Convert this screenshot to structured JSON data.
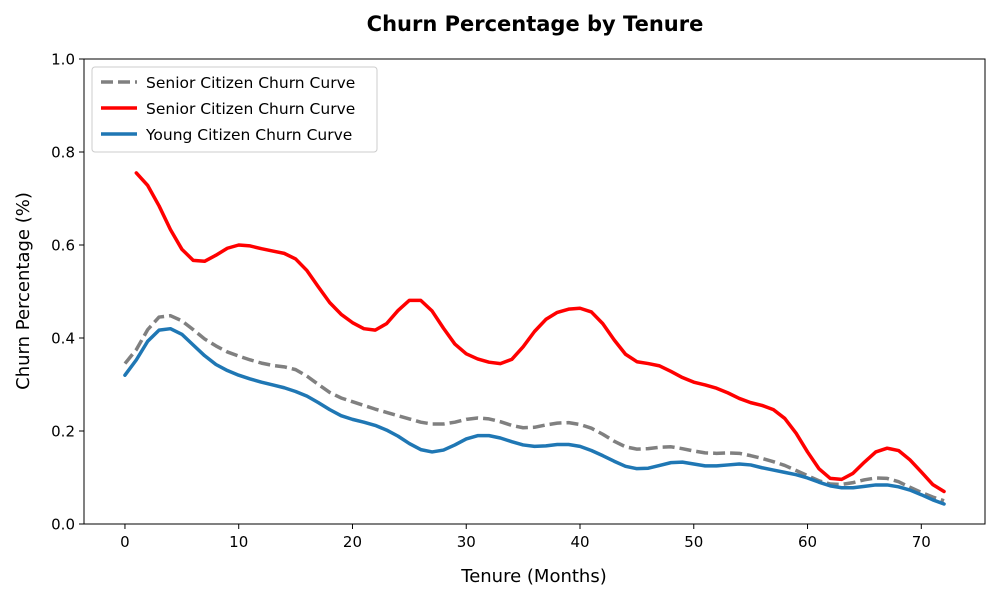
{
  "chart_data": {
    "type": "line",
    "title": "Churn Percentage by Tenure",
    "xlabel": "Tenure (Months)",
    "ylabel": "Churn Percentage (%)",
    "xlim": [
      -3.6,
      75.6
    ],
    "ylim": [
      0.0,
      1.0
    ],
    "xticks": [
      0,
      10,
      20,
      30,
      40,
      50,
      60,
      70
    ],
    "yticks": [
      0.0,
      0.2,
      0.4,
      0.6,
      0.8,
      1.0
    ],
    "ytick_labels": [
      "0.0",
      "0.2",
      "0.4",
      "0.6",
      "0.8",
      "1.0"
    ],
    "grid": false,
    "legend_position": "top-left",
    "series": [
      {
        "name": "Senior Citizen Churn Curve",
        "color": "#808080",
        "style": "dashed",
        "x": [
          0,
          1,
          2,
          3,
          4,
          5,
          6,
          7,
          8,
          9,
          10,
          11,
          12,
          13,
          14,
          15,
          16,
          17,
          18,
          19,
          20,
          21,
          22,
          23,
          24,
          25,
          26,
          27,
          28,
          29,
          30,
          31,
          32,
          33,
          34,
          35,
          36,
          37,
          38,
          39,
          40,
          41,
          42,
          43,
          44,
          45,
          46,
          47,
          48,
          49,
          50,
          51,
          52,
          53,
          54,
          55,
          56,
          57,
          58,
          59,
          60,
          61,
          62,
          63,
          64,
          65,
          66,
          67,
          68,
          69,
          70,
          71,
          72
        ],
        "values": [
          0.345,
          0.375,
          0.418,
          0.445,
          0.448,
          0.437,
          0.418,
          0.398,
          0.383,
          0.37,
          0.361,
          0.353,
          0.346,
          0.341,
          0.338,
          0.332,
          0.318,
          0.3,
          0.283,
          0.271,
          0.263,
          0.255,
          0.247,
          0.24,
          0.233,
          0.226,
          0.219,
          0.215,
          0.215,
          0.219,
          0.225,
          0.228,
          0.226,
          0.22,
          0.212,
          0.207,
          0.208,
          0.213,
          0.217,
          0.218,
          0.214,
          0.206,
          0.193,
          0.178,
          0.166,
          0.161,
          0.162,
          0.165,
          0.166,
          0.162,
          0.157,
          0.153,
          0.152,
          0.153,
          0.152,
          0.147,
          0.141,
          0.134,
          0.126,
          0.115,
          0.104,
          0.093,
          0.086,
          0.085,
          0.089,
          0.095,
          0.099,
          0.098,
          0.091,
          0.079,
          0.068,
          0.058,
          0.05
        ]
      },
      {
        "name": "Senior Citizen Churn Curve",
        "color": "#ff0000",
        "style": "solid",
        "x": [
          1,
          2,
          3,
          4,
          5,
          6,
          7,
          8,
          9,
          10,
          11,
          12,
          13,
          14,
          15,
          16,
          17,
          18,
          19,
          20,
          21,
          22,
          23,
          24,
          25,
          26,
          27,
          28,
          29,
          30,
          31,
          32,
          33,
          34,
          35,
          36,
          37,
          38,
          39,
          40,
          41,
          42,
          43,
          44,
          45,
          46,
          47,
          48,
          49,
          50,
          51,
          52,
          53,
          54,
          55,
          56,
          57,
          58,
          59,
          60,
          61,
          62,
          63,
          64,
          65,
          66,
          67,
          68,
          69,
          70,
          71,
          72
        ],
        "values": [
          0.755,
          0.728,
          0.684,
          0.633,
          0.591,
          0.567,
          0.565,
          0.578,
          0.593,
          0.6,
          0.598,
          0.592,
          0.587,
          0.582,
          0.57,
          0.545,
          0.51,
          0.476,
          0.451,
          0.433,
          0.42,
          0.417,
          0.431,
          0.459,
          0.481,
          0.481,
          0.458,
          0.421,
          0.387,
          0.366,
          0.355,
          0.348,
          0.345,
          0.354,
          0.381,
          0.414,
          0.44,
          0.455,
          0.462,
          0.464,
          0.456,
          0.431,
          0.396,
          0.365,
          0.349,
          0.345,
          0.34,
          0.328,
          0.315,
          0.305,
          0.299,
          0.292,
          0.282,
          0.27,
          0.261,
          0.255,
          0.246,
          0.227,
          0.195,
          0.155,
          0.119,
          0.098,
          0.096,
          0.109,
          0.133,
          0.155,
          0.163,
          0.158,
          0.138,
          0.112,
          0.085,
          0.07
        ]
      },
      {
        "name": "Young Citizen Churn Curve",
        "color": "#1f77b4",
        "style": "solid",
        "x": [
          0,
          1,
          2,
          3,
          4,
          5,
          6,
          7,
          8,
          9,
          10,
          11,
          12,
          13,
          14,
          15,
          16,
          17,
          18,
          19,
          20,
          21,
          22,
          23,
          24,
          25,
          26,
          27,
          28,
          29,
          30,
          31,
          32,
          33,
          34,
          35,
          36,
          37,
          38,
          39,
          40,
          41,
          42,
          43,
          44,
          45,
          46,
          47,
          48,
          49,
          50,
          51,
          52,
          53,
          54,
          55,
          56,
          57,
          58,
          59,
          60,
          61,
          62,
          63,
          64,
          65,
          66,
          67,
          68,
          69,
          70,
          71,
          72
        ],
        "values": [
          0.32,
          0.353,
          0.393,
          0.417,
          0.42,
          0.408,
          0.385,
          0.362,
          0.343,
          0.33,
          0.32,
          0.312,
          0.305,
          0.299,
          0.293,
          0.285,
          0.275,
          0.261,
          0.246,
          0.233,
          0.225,
          0.219,
          0.212,
          0.202,
          0.189,
          0.173,
          0.16,
          0.155,
          0.159,
          0.17,
          0.183,
          0.19,
          0.19,
          0.185,
          0.177,
          0.17,
          0.167,
          0.168,
          0.171,
          0.171,
          0.167,
          0.158,
          0.147,
          0.135,
          0.124,
          0.119,
          0.12,
          0.126,
          0.132,
          0.133,
          0.129,
          0.125,
          0.125,
          0.127,
          0.129,
          0.127,
          0.121,
          0.116,
          0.111,
          0.106,
          0.099,
          0.09,
          0.082,
          0.078,
          0.078,
          0.081,
          0.084,
          0.084,
          0.08,
          0.073,
          0.063,
          0.052,
          0.043
        ]
      }
    ]
  }
}
